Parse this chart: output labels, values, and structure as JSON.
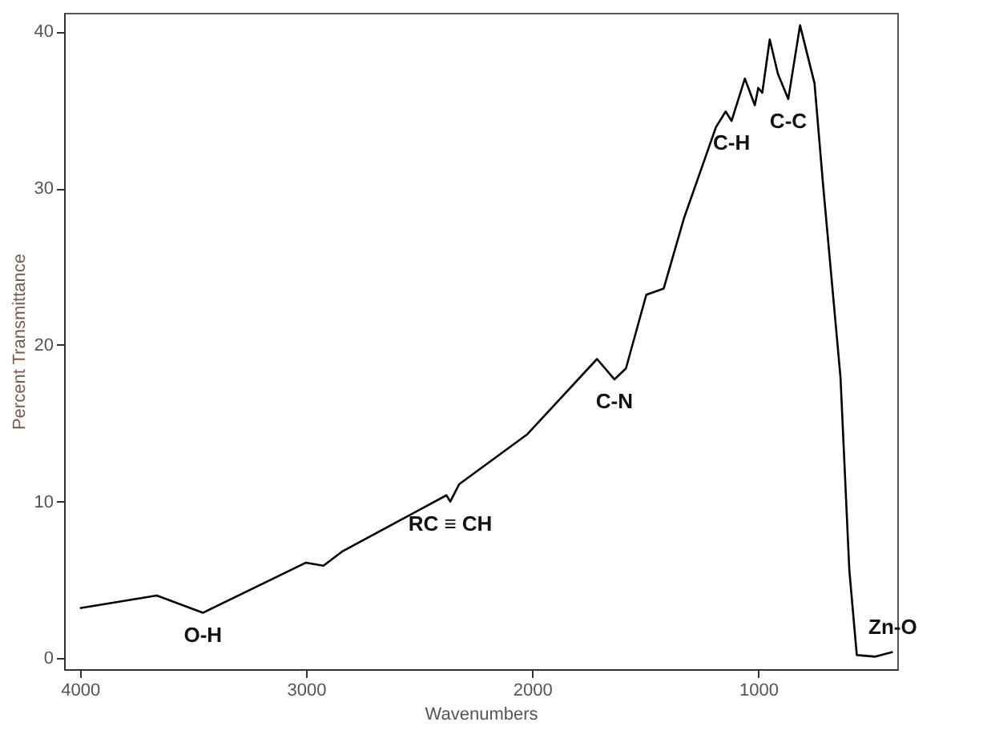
{
  "chart_data": {
    "type": "line",
    "xlabel": "Wavenumbers",
    "ylabel": "Percent Transmittance",
    "x": [
      4000,
      3660,
      3456,
      3000,
      2923,
      2841,
      2379,
      2362,
      2323,
      2021,
      1713,
      1636,
      1585,
      1495,
      1418,
      1328,
      1187,
      1144,
      1118,
      1059,
      1015,
      1000,
      982,
      949,
      913,
      867,
      815,
      751,
      713,
      636,
      597,
      564,
      482,
      405
    ],
    "series": [
      {
        "color": "#000000",
        "values": [
          3.2,
          4.0,
          2.9,
          6.1,
          5.9,
          6.8,
          10.4,
          10.0,
          11.1,
          14.3,
          19.1,
          17.8,
          18.5,
          23.2,
          23.6,
          28.1,
          33.9,
          34.9,
          34.3,
          37.0,
          35.3,
          36.4,
          36.1,
          39.5,
          37.3,
          35.7,
          40.4,
          36.7,
          30.2,
          17.9,
          5.6,
          0.2,
          0.1,
          0.4
        ]
      }
    ],
    "xlim": [
      4070,
      385
    ],
    "xticks": [
      4000,
      3000,
      2000,
      1000
    ],
    "ylim": [
      -0.7,
      41.2
    ],
    "yticks": [
      0,
      10,
      20,
      30,
      40
    ],
    "grid": false,
    "marker": "none",
    "line_style": "solid",
    "annotations": [
      {
        "text": "O-H",
        "x": 3456,
        "y": 2.9
      },
      {
        "text": "RC ≡ CH",
        "x": 2362,
        "y": 10.0
      },
      {
        "text": "C-N",
        "x": 1636,
        "y": 17.8
      },
      {
        "text": "C-H",
        "x": 1118,
        "y": 34.3
      },
      {
        "text": "C-C",
        "x": 867,
        "y": 35.7
      },
      {
        "text": "Zn-O",
        "x": 405,
        "y": 0.4
      }
    ]
  }
}
